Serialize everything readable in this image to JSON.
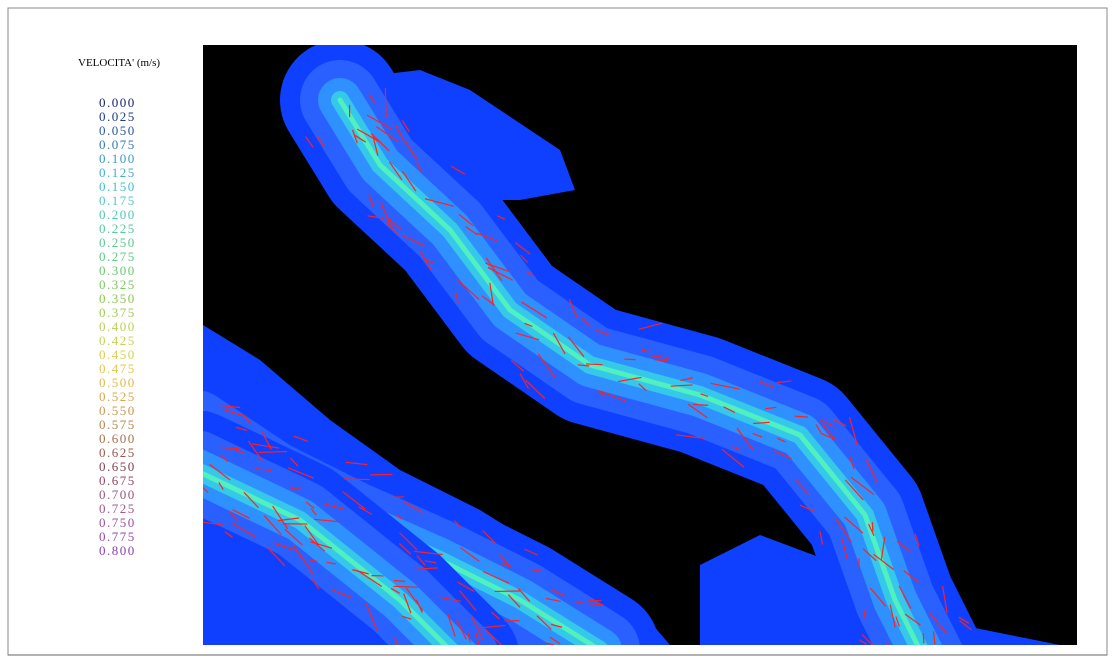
{
  "legend": {
    "title": "VELOCITA' (m/s)",
    "labels": [
      "0.000",
      "0.025",
      "0.050",
      "0.075",
      "0.100",
      "0.125",
      "0.150",
      "0.175",
      "0.200",
      "0.225",
      "0.250",
      "0.275",
      "0.300",
      "0.325",
      "0.350",
      "0.375",
      "0.400",
      "0.425",
      "0.450",
      "0.475",
      "0.500",
      "0.525",
      "0.550",
      "0.575",
      "0.600",
      "0.625",
      "0.650",
      "0.675",
      "0.700",
      "0.725",
      "0.750",
      "0.775",
      "0.800"
    ],
    "colors": [
      "#1a1a6e",
      "#1f3a8a",
      "#2a5aa0",
      "#2f7ab0",
      "#3a9ac0",
      "#3fb0c8",
      "#45c0c8",
      "#4ccac0",
      "#50c8b0",
      "#55c8a0",
      "#5ac890",
      "#60c880",
      "#6ac870",
      "#7ac860",
      "#8ac850",
      "#a0cc50",
      "#b8d050",
      "#c8d050",
      "#d8d048",
      "#e0c848",
      "#e0b848",
      "#d8a848",
      "#c89850",
      "#b88850",
      "#a87050",
      "#985850",
      "#884050",
      "#904868",
      "#985880",
      "#a05890",
      "#a050a0",
      "#9848a8",
      "#9040b0"
    ]
  }
}
